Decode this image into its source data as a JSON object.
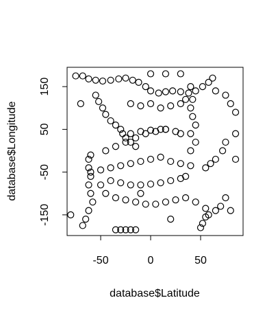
{
  "chart_data": {
    "type": "scatter",
    "x_label": "database$Latitude",
    "y_label": "database$Longitude",
    "xlim": [
      -83.6,
      92.5
    ],
    "ylim": [
      -198.4,
      195.2
    ],
    "xticks": [
      -50,
      0,
      50
    ],
    "yticks": [
      -150,
      -50,
      50,
      150
    ],
    "color": "#000000",
    "x": [
      -68,
      -62,
      -55,
      -48,
      -40,
      -32,
      -25,
      -18,
      -12,
      -5,
      0,
      8,
      15,
      22,
      30,
      38,
      45,
      52,
      58,
      62,
      -55,
      -52,
      -48,
      -45,
      -40,
      -35,
      -30,
      -28,
      -25,
      -20,
      -15,
      -62,
      -62,
      -60,
      -62,
      -60,
      -58,
      -62,
      -65,
      -68,
      -60,
      -45,
      -35,
      -25,
      -15,
      -5,
      5,
      15,
      -60,
      -50,
      -40,
      -30,
      -20,
      -10,
      0,
      10,
      20,
      30,
      40,
      -50,
      -40,
      -30,
      -20,
      -10,
      0,
      10,
      20,
      30,
      35,
      -45,
      -35,
      -25,
      -15,
      -5,
      5,
      15,
      25,
      35,
      45,
      55,
      -35,
      -30,
      -25,
      -20,
      -15,
      40,
      42,
      40,
      42,
      45,
      40,
      45,
      40,
      55,
      52,
      50,
      58,
      65,
      70,
      75,
      72,
      65,
      60,
      55,
      65,
      75,
      80,
      85,
      -80,
      -70,
      -75,
      15,
      20,
      85,
      85,
      75,
      80,
      10,
      -10,
      30,
      0,
      -20,
      -10,
      0,
      10,
      20,
      30,
      35,
      -20,
      -10,
      0,
      15,
      25,
      30
    ],
    "values": [
      175,
      168,
      165,
      163,
      165,
      168,
      170,
      165,
      160,
      150,
      140,
      135,
      138,
      140,
      138,
      135,
      140,
      150,
      160,
      170,
      130,
      115,
      100,
      85,
      70,
      60,
      50,
      40,
      30,
      20,
      10,
      -20,
      -40,
      -60,
      -80,
      -100,
      -120,
      -140,
      -160,
      -175,
      -10,
      0,
      10,
      20,
      30,
      40,
      45,
      50,
      -50,
      -45,
      -40,
      -35,
      -30,
      -25,
      -20,
      -15,
      -25,
      -30,
      -35,
      -80,
      -70,
      -75,
      -80,
      -80,
      -78,
      -75,
      -70,
      -65,
      -60,
      -100,
      -110,
      -115,
      -120,
      -125,
      -125,
      -120,
      -115,
      -110,
      -120,
      -135,
      -185,
      -185,
      -185,
      -185,
      -185,
      150,
      120,
      100,
      80,
      60,
      40,
      20,
      0,
      -155,
      -170,
      -180,
      -150,
      -140,
      -130,
      20,
      0,
      -20,
      -30,
      -40,
      140,
      130,
      110,
      90,
      -150,
      110,
      175,
      180,
      -160,
      40,
      -20,
      -110,
      -140,
      50,
      -100,
      180,
      180,
      110,
      105,
      110,
      100,
      105,
      110,
      120,
      40,
      45,
      48,
      50,
      45,
      40
    ]
  }
}
